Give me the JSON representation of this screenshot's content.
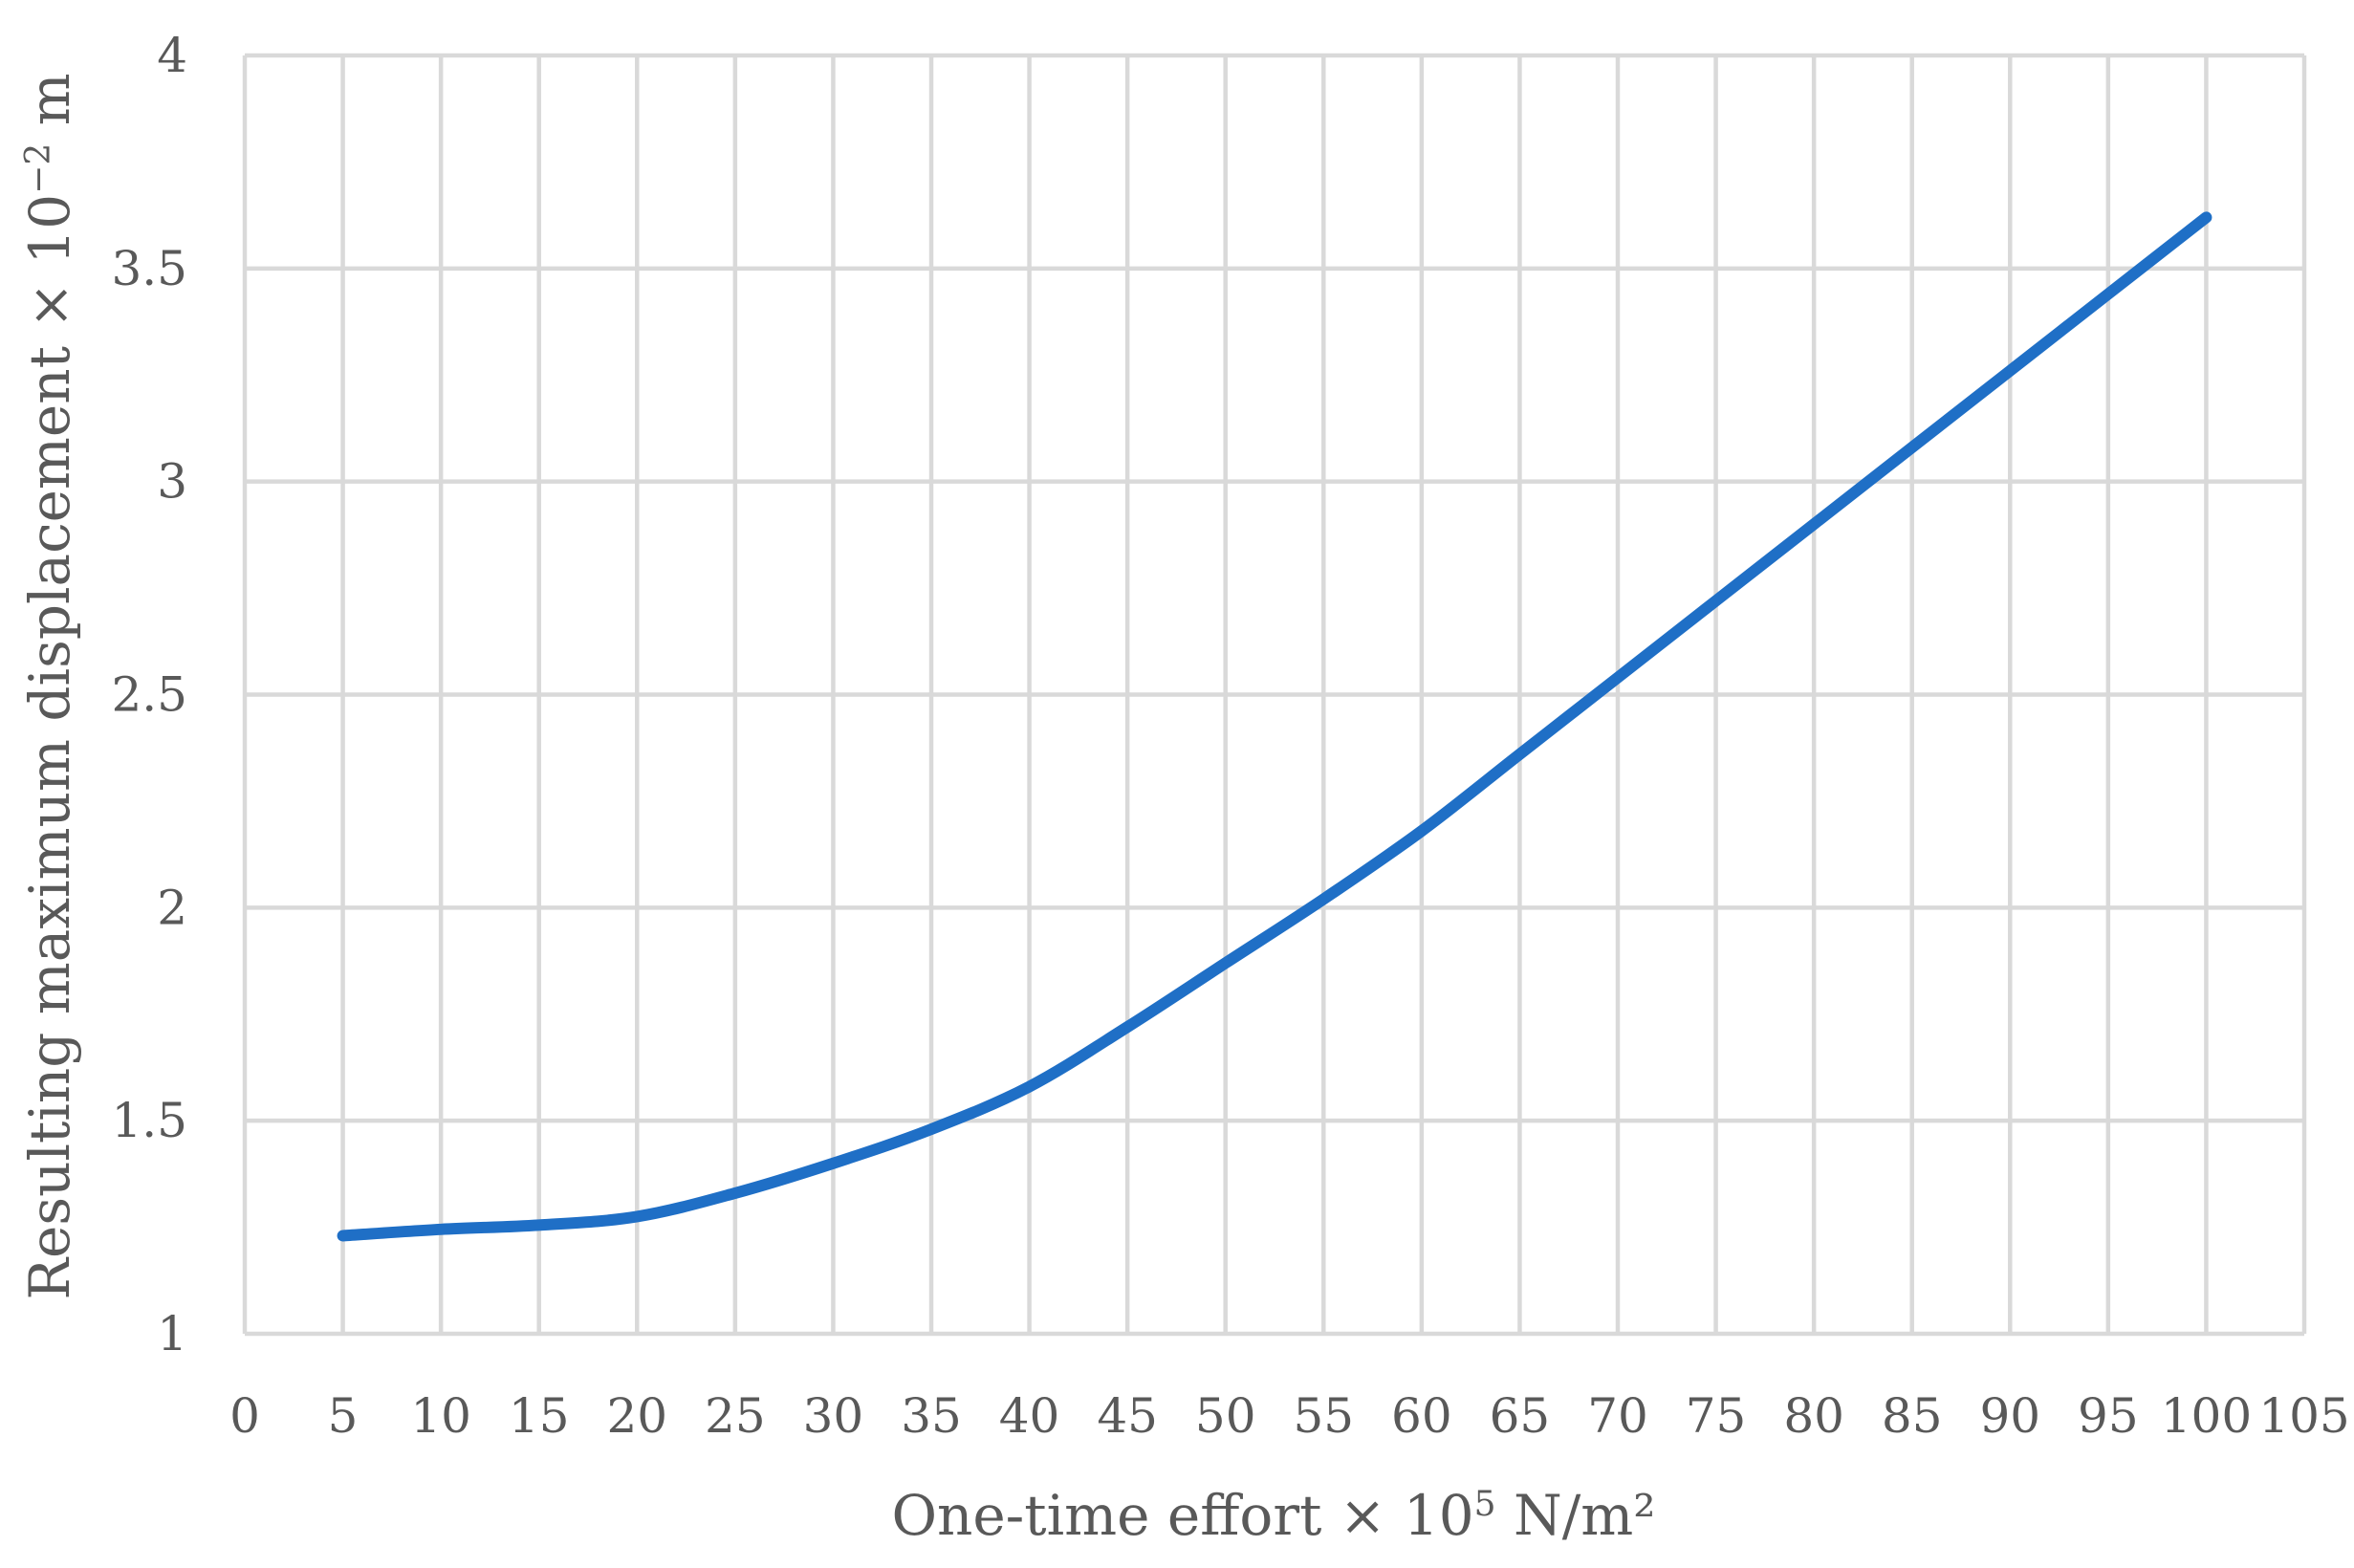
{
  "chart_data": {
    "type": "line",
    "title": "",
    "xlabel": {
      "prefix": "One-time effort × 10",
      "sup": "5",
      "suffix": " N/m²"
    },
    "ylabel": {
      "prefix": "Resulting maximum displacement  × 10",
      "sup": "−2",
      "suffix": " m"
    },
    "xlim": [
      0,
      105
    ],
    "ylim": [
      1,
      4
    ],
    "x_ticks": [
      "0",
      "5",
      "10",
      "15",
      "20",
      "25",
      "30",
      "35",
      "40",
      "45",
      "50",
      "55",
      "60",
      "65",
      "70",
      "75",
      "80",
      "85",
      "90",
      "95",
      "100",
      "105"
    ],
    "y_ticks": [
      "1",
      "1.5",
      "2",
      "2.5",
      "3",
      "3.5",
      "4"
    ],
    "grid": true,
    "legend": "none",
    "series": [
      {
        "color": "#1F6FC6",
        "x": [
          5,
          10,
          15,
          20,
          25,
          30,
          35,
          40,
          45,
          50,
          55,
          60,
          65,
          70,
          75,
          80,
          85,
          90,
          95,
          100
        ],
        "y": [
          1.23,
          1.245,
          1.255,
          1.275,
          1.33,
          1.4,
          1.48,
          1.58,
          1.72,
          1.87,
          2.02,
          2.18,
          2.36,
          2.54,
          2.72,
          2.9,
          3.08,
          3.26,
          3.44,
          3.62
        ]
      }
    ]
  }
}
